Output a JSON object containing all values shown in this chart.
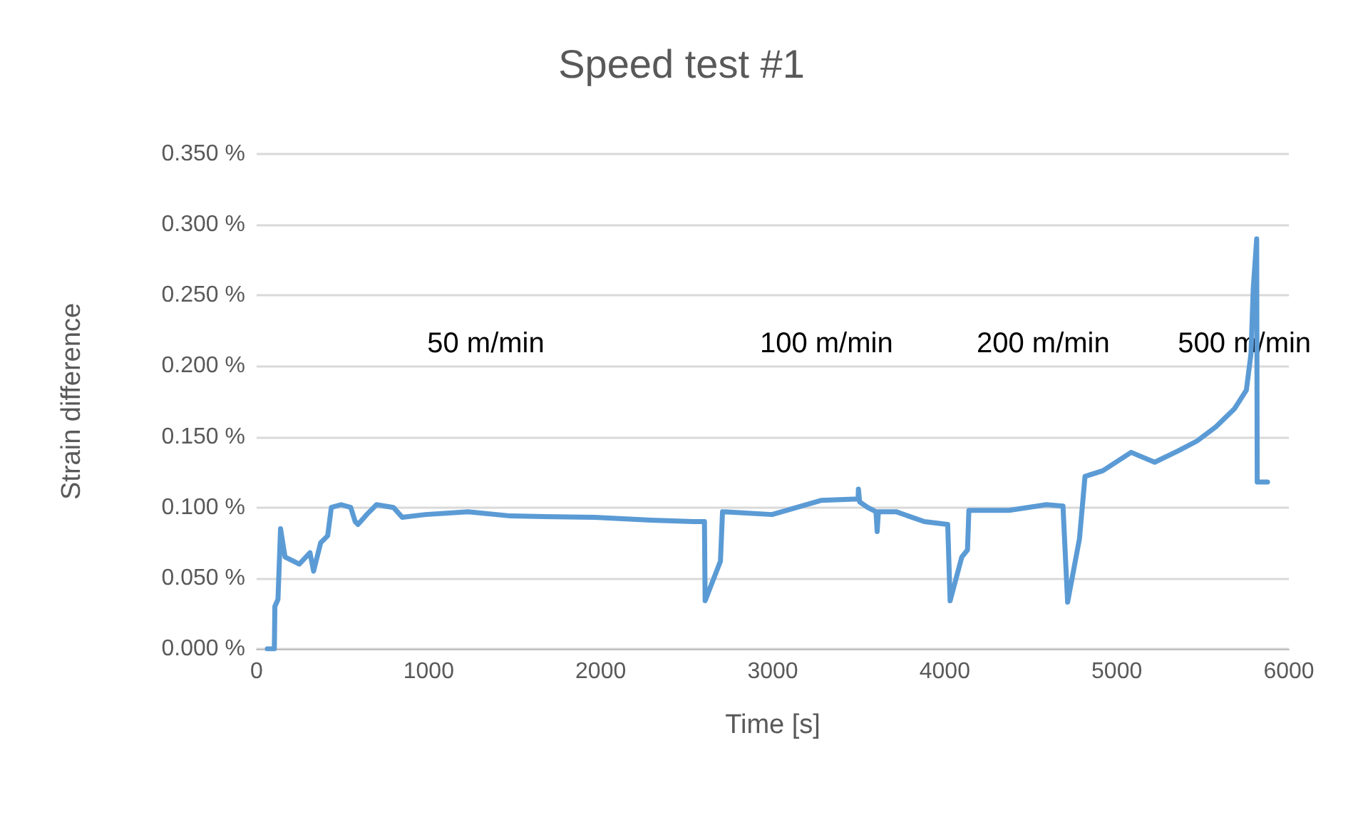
{
  "chart_data": {
    "type": "line",
    "title": "Speed test #1",
    "xlabel": "Time [s]",
    "ylabel": "Strain difference",
    "xlim": [
      0,
      6000
    ],
    "xticks": [
      0,
      1000,
      2000,
      3000,
      4000,
      5000,
      6000
    ],
    "ylim": [
      0,
      0.35
    ],
    "yticks": [
      {
        "value": 0,
        "label": "0.000 %"
      },
      {
        "value": 0.05,
        "label": "0.050 %"
      },
      {
        "value": 0.1,
        "label": "0.100 %"
      },
      {
        "value": 0.15,
        "label": "0.150 %"
      },
      {
        "value": 0.2,
        "label": "0.200 %"
      },
      {
        "value": 0.25,
        "label": "0.250 %"
      },
      {
        "value": 0.3,
        "label": "0.300 %"
      },
      {
        "value": 0.35,
        "label": "0.350 %"
      }
    ],
    "grid": "y",
    "marker": "none",
    "line_style": "solid",
    "annotations": [
      "50 m/min",
      "100 m/min",
      "200 m/min",
      "500 m/min"
    ],
    "series": [
      {
        "color": "#5b9bd5",
        "x": [
          62,
          103,
          106,
          124,
          139,
          165,
          248,
          310,
          331,
          372,
          413,
          434,
          491,
          547,
          573,
          589,
          640,
          697,
          795,
          847,
          981,
          1229,
          1477,
          1963,
          2293,
          2541,
          2603,
          2607,
          2696,
          2708,
          2996,
          3280,
          3496,
          3498,
          3505,
          3552,
          3600,
          3607,
          3614,
          3717,
          3881,
          4017,
          4031,
          4099,
          4132,
          4140,
          4373,
          4591,
          4687,
          4714,
          4783,
          4815,
          4919,
          5083,
          5220,
          5356,
          5466,
          5575,
          5685,
          5753,
          5780,
          5793,
          5813,
          5816,
          5876
        ],
        "values": [
          0,
          0,
          0.03,
          0.035,
          0.085,
          0.065,
          0.06,
          0.068,
          0.055,
          0.075,
          0.08,
          0.1,
          0.102,
          0.1,
          0.09,
          0.088,
          0.095,
          0.102,
          0.1,
          0.093,
          0.095,
          0.097,
          0.094,
          0.093,
          0.091,
          0.09,
          0.09,
          0.034,
          0.062,
          0.097,
          0.095,
          0.105,
          0.106,
          0.113,
          0.104,
          0.1,
          0.097,
          0.083,
          0.097,
          0.097,
          0.09,
          0.088,
          0.034,
          0.065,
          0.07,
          0.098,
          0.098,
          0.102,
          0.101,
          0.033,
          0.078,
          0.122,
          0.126,
          0.139,
          0.132,
          0.14,
          0.147,
          0.157,
          0.17,
          0.183,
          0.209,
          0.255,
          0.29,
          0.118,
          0.118
        ]
      }
    ]
  }
}
